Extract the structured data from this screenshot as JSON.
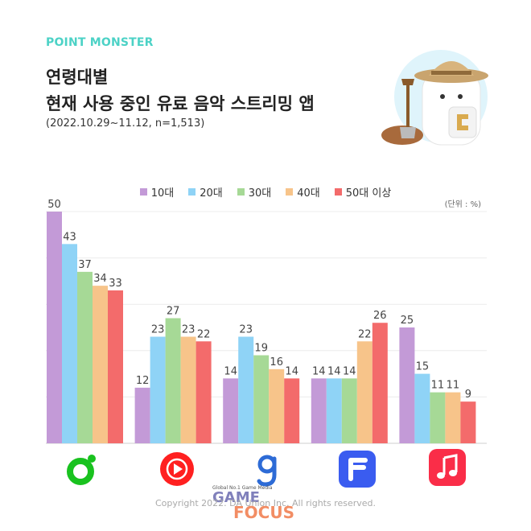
{
  "header": {
    "brand": "POINT MONSTER",
    "title_line1": "연령대별",
    "title_line2": "현재 사용 중인 유료 음악 스트리밍 앱",
    "subtitle": "(2022.10.29~11.12, n=1,513)"
  },
  "unit_label": "(단위 : %)",
  "copyright": "Copyright 2022. DA Union Inc. All rights reserved.",
  "watermark": {
    "tagline": "Global No.1 Game Media",
    "line1": "GAME",
    "line2": "FOCUS"
  },
  "apps": [
    {
      "icon": "melon-icon",
      "color": "#19c21f"
    },
    {
      "icon": "youtube-music-icon",
      "color": "#ff2020"
    },
    {
      "icon": "genie-icon",
      "color": "#2d6bd6"
    },
    {
      "icon": "flo-icon",
      "color": "#3a5cf0"
    },
    {
      "icon": "apple-music-icon",
      "color": "#fa2d48"
    }
  ],
  "chart_data": {
    "type": "bar",
    "categories": [
      "",
      "",
      "",
      "",
      ""
    ],
    "series": [
      {
        "name": "10대",
        "color": "#c39ad7",
        "values": [
          50,
          12,
          14,
          14,
          25
        ]
      },
      {
        "name": "20대",
        "color": "#8fd3f6",
        "values": [
          43,
          23,
          23,
          14,
          15
        ]
      },
      {
        "name": "30대",
        "color": "#a6d996",
        "values": [
          37,
          27,
          19,
          14,
          11
        ]
      },
      {
        "name": "40대",
        "color": "#f7c48a",
        "values": [
          34,
          23,
          16,
          22,
          11
        ]
      },
      {
        "name": "50대 이상",
        "color": "#f36b6b",
        "values": [
          33,
          22,
          14,
          26,
          9
        ]
      }
    ],
    "ylim": [
      0,
      50
    ],
    "grid": true,
    "legend": "top-center"
  }
}
